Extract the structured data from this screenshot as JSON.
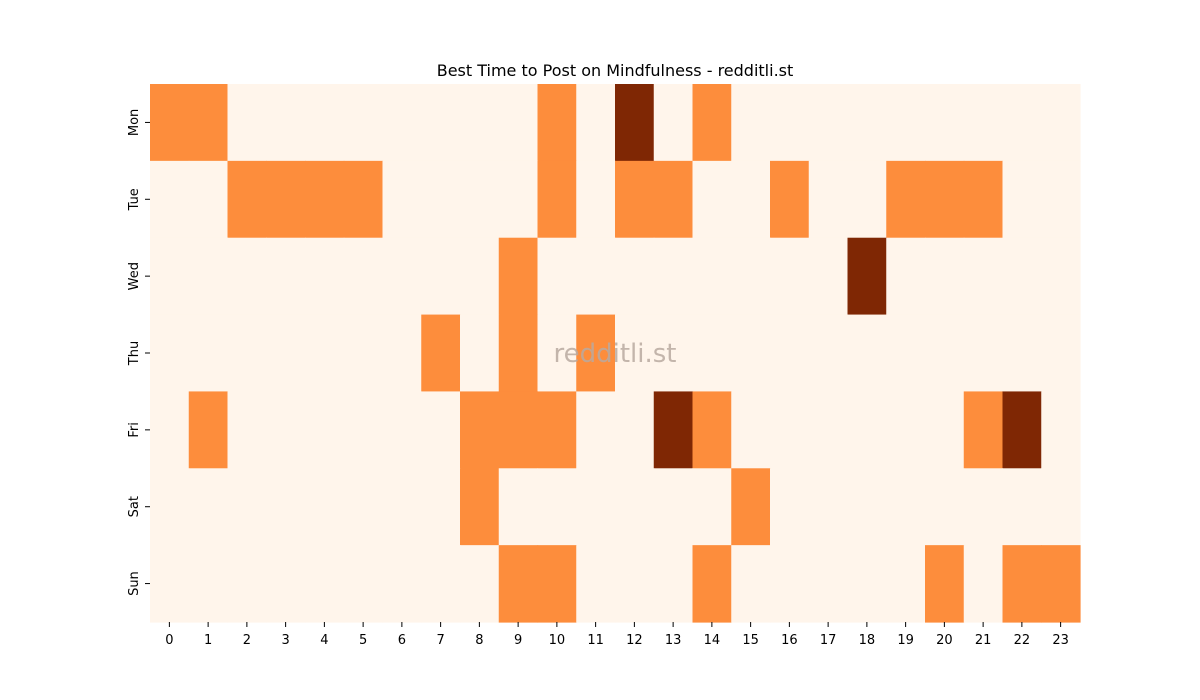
{
  "chart_data": {
    "type": "heatmap",
    "title": "Best Time to Post on Mindfulness - redditli.st",
    "watermark": "redditli.st",
    "x_categories": [
      "0",
      "1",
      "2",
      "3",
      "4",
      "5",
      "6",
      "7",
      "8",
      "9",
      "10",
      "11",
      "12",
      "13",
      "14",
      "15",
      "16",
      "17",
      "18",
      "19",
      "20",
      "21",
      "22",
      "23"
    ],
    "y_categories": [
      "Mon",
      "Tue",
      "Wed",
      "Thu",
      "Fri",
      "Sat",
      "Sun"
    ],
    "values": [
      [
        1,
        1,
        0,
        0,
        0,
        0,
        0,
        0,
        0,
        0,
        1,
        0,
        2,
        0,
        1,
        0,
        0,
        0,
        0,
        0,
        0,
        0,
        0,
        0
      ],
      [
        0,
        0,
        1,
        1,
        1,
        1,
        0,
        0,
        0,
        0,
        1,
        0,
        1,
        1,
        0,
        0,
        1,
        0,
        0,
        1,
        1,
        1,
        0,
        0
      ],
      [
        0,
        0,
        0,
        0,
        0,
        0,
        0,
        0,
        0,
        1,
        0,
        0,
        0,
        0,
        0,
        0,
        0,
        0,
        2,
        0,
        0,
        0,
        0,
        0
      ],
      [
        0,
        0,
        0,
        0,
        0,
        0,
        0,
        1,
        0,
        1,
        0,
        1,
        0,
        0,
        0,
        0,
        0,
        0,
        0,
        0,
        0,
        0,
        0,
        0
      ],
      [
        0,
        1,
        0,
        0,
        0,
        0,
        0,
        0,
        1,
        1,
        1,
        0,
        0,
        2,
        1,
        0,
        0,
        0,
        0,
        0,
        0,
        1,
        2,
        0
      ],
      [
        0,
        0,
        0,
        0,
        0,
        0,
        0,
        0,
        1,
        0,
        0,
        0,
        0,
        0,
        0,
        1,
        0,
        0,
        0,
        0,
        0,
        0,
        0,
        0
      ],
      [
        0,
        0,
        0,
        0,
        0,
        0,
        0,
        0,
        0,
        1,
        1,
        0,
        0,
        0,
        1,
        0,
        0,
        0,
        0,
        0,
        1,
        0,
        1,
        1
      ]
    ],
    "value_range": [
      0,
      2
    ],
    "colormap": "Oranges",
    "colors": {
      "0": "#fff5eb",
      "1": "#fd8d3c",
      "2": "#7f2704"
    },
    "xlabel": "",
    "ylabel": "",
    "legend": "none",
    "grid": false
  }
}
